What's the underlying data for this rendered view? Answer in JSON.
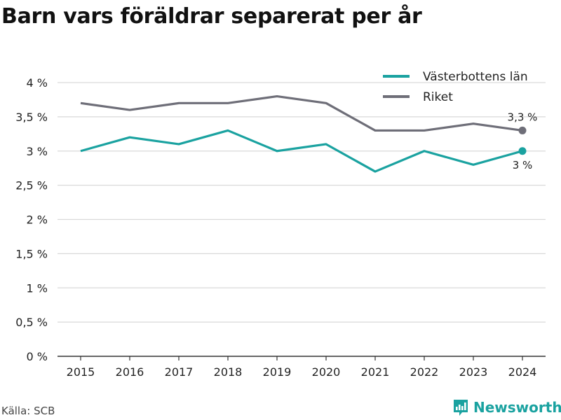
{
  "title": "Barn vars föräldrar separerat per år",
  "source": "Källa: SCB",
  "brand": "Newsworthy",
  "colors": {
    "teal": "#1aa2a0",
    "gray": "#6e6e78",
    "grid": "#d9d9d9",
    "axis": "#333333"
  },
  "chart_data": {
    "type": "line",
    "x": [
      2015,
      2016,
      2017,
      2018,
      2019,
      2020,
      2021,
      2022,
      2023,
      2024
    ],
    "xlabels": [
      "2015",
      "2016",
      "2017",
      "2018",
      "2019",
      "2020",
      "2021",
      "2022",
      "2023",
      "2024"
    ],
    "ylim": [
      0,
      4
    ],
    "yticks": [
      0,
      0.5,
      1,
      1.5,
      2,
      2.5,
      3,
      3.5,
      4
    ],
    "ytick_labels": [
      "0 %",
      "0,5 %",
      "1 %",
      "1,5 %",
      "2 %",
      "2,5 %",
      "3 %",
      "3,5 %",
      "4 %"
    ],
    "grid": true,
    "legend": "top-right",
    "series": [
      {
        "name": "Västerbottens län",
        "color": "#1aa2a0",
        "values": [
          3.0,
          3.2,
          3.1,
          3.3,
          3.0,
          3.1,
          2.7,
          3.0,
          2.8,
          3.0
        ],
        "end_label": "3 %"
      },
      {
        "name": "Riket",
        "color": "#6e6e78",
        "values": [
          3.7,
          3.6,
          3.7,
          3.7,
          3.8,
          3.7,
          3.3,
          3.3,
          3.4,
          3.3
        ],
        "end_label": "3,3 %"
      }
    ]
  }
}
